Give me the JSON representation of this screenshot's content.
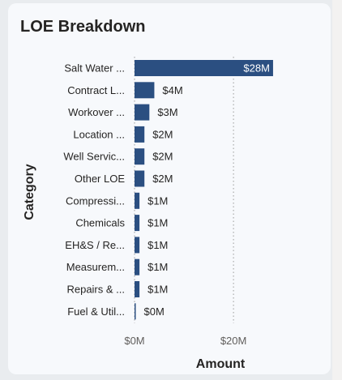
{
  "card": {
    "title": "LOE Breakdown"
  },
  "chart_data": {
    "type": "bar",
    "orientation": "horizontal",
    "title": "LOE Breakdown",
    "xlabel": "Amount",
    "ylabel": "Category",
    "categories": [
      "Salt Water ...",
      "Contract L...",
      "Workover ...",
      "Location ...",
      "Well Servic...",
      "Other LOE",
      "Compressi...",
      "Chemicals",
      "EH&S / Re...",
      "Measurem...",
      "Repairs & ...",
      "Fuel & Util..."
    ],
    "values": [
      28,
      4,
      3,
      2,
      2,
      2,
      1,
      1,
      1,
      1,
      1,
      0
    ],
    "data_labels": [
      "$28M",
      "$4M",
      "$3M",
      "$2M",
      "$2M",
      "$2M",
      "$1M",
      "$1M",
      "$1M",
      "$1M",
      "$1M",
      "$0M"
    ],
    "x_ticks": [
      0,
      20
    ],
    "x_tick_labels": [
      "$0M",
      "$20M"
    ],
    "xlim": [
      0,
      28.5
    ],
    "grid": "vertical dotted",
    "bar_color": "#2b4f81"
  }
}
